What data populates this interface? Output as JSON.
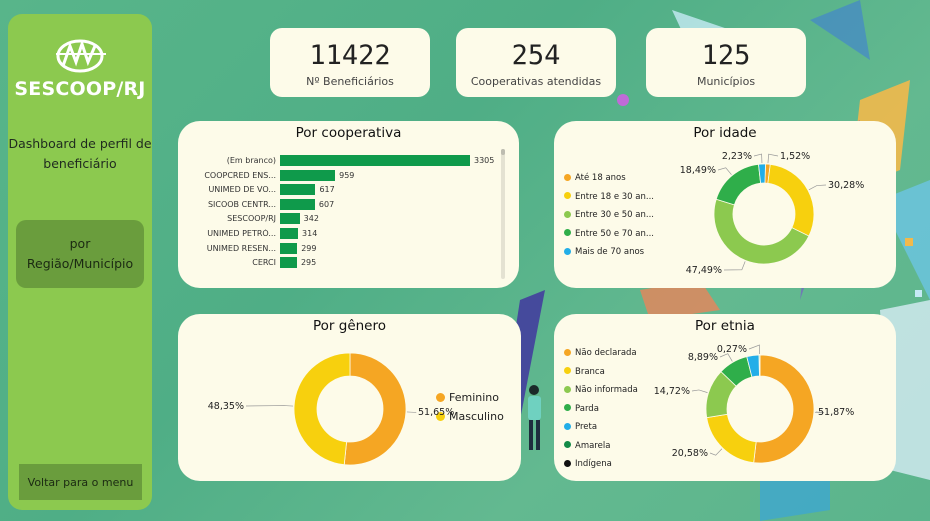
{
  "sidebar": {
    "logo_text": "SESCOOP/RJ",
    "title": "Dashboard de perfil de beneficiário",
    "region_button": "por Região/Município",
    "back_button": "Voltar para o menu"
  },
  "kpis": [
    {
      "value": "11422",
      "label": "Nº Beneficiários"
    },
    {
      "value": "254",
      "label": "Cooperativas atendidas"
    },
    {
      "value": "125",
      "label": "Municípios"
    }
  ],
  "colors": {
    "sidebar": "#8cc94f",
    "sidebar_button": "#6a9d3d",
    "panel": "#fdfbe9",
    "bar_green": "#0f9a4b",
    "orange": "#f5a623",
    "yellow": "#f7d00e",
    "light_green": "#8cc94f",
    "green": "#2fae4a",
    "blue": "#22aee8",
    "dark_green": "#138a47",
    "black": "#111111"
  },
  "chart_data": [
    {
      "type": "bar",
      "title": "Por cooperativa",
      "categories": [
        "(Em branco)",
        "COOPCRED ENS...",
        "UNIMED DE VO...",
        "SICOOB CENTR...",
        "SESCOOP/RJ",
        "UNIMED PETRÓ...",
        "UNIMED RESEN...",
        "CERCI"
      ],
      "values": [
        3305,
        959,
        617,
        607,
        342,
        314,
        299,
        295
      ]
    },
    {
      "type": "pie",
      "title": "Por idade",
      "labels": [
        "Até 18 anos",
        "Entre 18 e 30 an...",
        "Entre 30 e 50 an...",
        "Entre 50 e 70 an...",
        "Mais de 70 anos"
      ],
      "values": [
        1.52,
        30.28,
        47.49,
        18.49,
        2.23
      ],
      "value_labels": [
        "1,52%",
        "30,28%",
        "47,49%",
        "18,49%",
        "2,23%"
      ]
    },
    {
      "type": "pie",
      "title": "Por gênero",
      "labels": [
        "Feminino",
        "Masculino"
      ],
      "values": [
        51.65,
        48.35
      ],
      "value_labels": [
        "51,65%",
        "48,35%"
      ]
    },
    {
      "type": "pie",
      "title": "Por etnia",
      "labels": [
        "Não declarada",
        "Branca",
        "Não informada",
        "Parda",
        "Preta",
        "Amarela",
        "Indígena"
      ],
      "values": [
        51.87,
        20.58,
        14.72,
        8.89,
        3.67,
        0.27,
        0
      ],
      "value_labels": [
        "51,87%",
        "20,58%",
        "14,72%",
        "8,89%",
        "",
        "0,27%",
        ""
      ]
    }
  ]
}
